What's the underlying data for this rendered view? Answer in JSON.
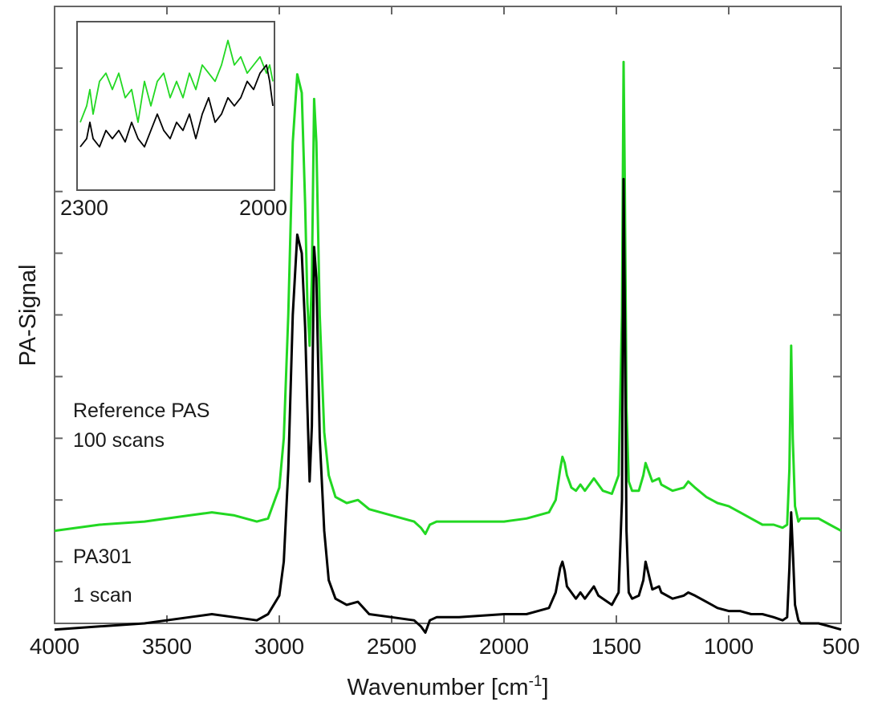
{
  "chart_data": {
    "type": "line",
    "title": "",
    "xlabel": "Wavenumber [cm",
    "xlabel_superscript": "-1",
    "xlabel_suffix": "]",
    "ylabel": "PA-Signal",
    "xlim": [
      4000,
      500
    ],
    "x_reversed": true,
    "x_ticks": [
      4000,
      3500,
      3000,
      2500,
      2000,
      1500,
      1000,
      500
    ],
    "y_tick_labels": false,
    "ylim": [
      0,
      10
    ],
    "grid": false,
    "series": [
      {
        "label_lines": [
          "Reference PAS",
          "100 scans"
        ],
        "color": "#22d822",
        "x": [
          4000,
          3800,
          3600,
          3400,
          3300,
          3200,
          3100,
          3050,
          3000,
          2980,
          2960,
          2940,
          2920,
          2900,
          2885,
          2875,
          2865,
          2855,
          2845,
          2835,
          2820,
          2800,
          2780,
          2750,
          2700,
          2650,
          2600,
          2500,
          2400,
          2370,
          2350,
          2330,
          2300,
          2200,
          2000,
          1900,
          1800,
          1770,
          1750,
          1740,
          1730,
          1720,
          1700,
          1680,
          1660,
          1640,
          1600,
          1580,
          1560,
          1520,
          1490,
          1475,
          1468,
          1462,
          1455,
          1445,
          1430,
          1400,
          1380,
          1370,
          1360,
          1340,
          1310,
          1300,
          1250,
          1200,
          1180,
          1150,
          1100,
          1050,
          1000,
          950,
          900,
          850,
          800,
          760,
          740,
          730,
          722,
          715,
          705,
          690,
          680,
          650,
          600,
          550,
          500
        ],
        "y": [
          1.5,
          1.6,
          1.65,
          1.75,
          1.8,
          1.75,
          1.65,
          1.7,
          2.2,
          3.0,
          5.0,
          7.8,
          8.9,
          8.6,
          6.8,
          5.2,
          4.5,
          5.6,
          8.5,
          7.8,
          5.0,
          3.1,
          2.4,
          2.05,
          1.95,
          2.0,
          1.85,
          1.75,
          1.65,
          1.55,
          1.45,
          1.6,
          1.65,
          1.65,
          1.65,
          1.7,
          1.8,
          2.0,
          2.5,
          2.7,
          2.6,
          2.4,
          2.2,
          2.15,
          2.25,
          2.15,
          2.35,
          2.25,
          2.15,
          2.1,
          2.4,
          5.0,
          9.1,
          7.0,
          3.5,
          2.3,
          2.15,
          2.15,
          2.4,
          2.6,
          2.5,
          2.3,
          2.35,
          2.25,
          2.15,
          2.2,
          2.3,
          2.2,
          2.05,
          1.95,
          1.9,
          1.8,
          1.7,
          1.6,
          1.6,
          1.55,
          1.6,
          2.5,
          4.5,
          3.0,
          1.9,
          1.65,
          1.7,
          1.7,
          1.7,
          1.6,
          1.5
        ]
      },
      {
        "label_lines": [
          "PA301",
          "1 scan"
        ],
        "color": "#000000",
        "x": [
          4000,
          3800,
          3600,
          3400,
          3300,
          3200,
          3100,
          3050,
          3000,
          2980,
          2960,
          2940,
          2920,
          2900,
          2885,
          2875,
          2865,
          2855,
          2845,
          2835,
          2820,
          2800,
          2780,
          2750,
          2700,
          2650,
          2600,
          2500,
          2400,
          2370,
          2350,
          2330,
          2300,
          2200,
          2000,
          1900,
          1800,
          1770,
          1750,
          1740,
          1730,
          1720,
          1700,
          1680,
          1660,
          1640,
          1600,
          1580,
          1560,
          1520,
          1490,
          1475,
          1468,
          1462,
          1455,
          1445,
          1430,
          1400,
          1380,
          1370,
          1360,
          1340,
          1310,
          1300,
          1250,
          1200,
          1180,
          1150,
          1100,
          1050,
          1000,
          950,
          900,
          850,
          800,
          760,
          740,
          730,
          722,
          715,
          705,
          690,
          680,
          650,
          600,
          550,
          500
        ],
        "y": [
          -0.1,
          -0.05,
          0.0,
          0.1,
          0.15,
          0.1,
          0.05,
          0.15,
          0.45,
          1.0,
          2.5,
          5.0,
          6.3,
          6.0,
          4.8,
          3.5,
          2.3,
          3.2,
          6.1,
          5.6,
          3.0,
          1.5,
          0.7,
          0.4,
          0.3,
          0.35,
          0.15,
          0.1,
          0.05,
          -0.05,
          -0.15,
          0.05,
          0.1,
          0.1,
          0.15,
          0.15,
          0.25,
          0.5,
          0.9,
          1.0,
          0.85,
          0.6,
          0.5,
          0.4,
          0.5,
          0.4,
          0.6,
          0.45,
          0.4,
          0.3,
          0.5,
          2.0,
          7.2,
          5.0,
          1.5,
          0.5,
          0.4,
          0.45,
          0.7,
          1.0,
          0.85,
          0.55,
          0.6,
          0.5,
          0.4,
          0.45,
          0.5,
          0.45,
          0.35,
          0.25,
          0.2,
          0.2,
          0.15,
          0.15,
          0.1,
          0.05,
          0.1,
          0.9,
          1.8,
          1.2,
          0.3,
          0.05,
          0.0,
          0.0,
          0.0,
          -0.05,
          -0.1
        ]
      }
    ],
    "inset": {
      "xlim": [
        2300,
        2000
      ],
      "x_tick_labels": [
        "2300",
        "2000"
      ],
      "series": [
        {
          "color": "#22d822",
          "x": [
            2300,
            2290,
            2285,
            2280,
            2270,
            2260,
            2250,
            2240,
            2230,
            2220,
            2210,
            2200,
            2190,
            2180,
            2170,
            2160,
            2150,
            2140,
            2130,
            2120,
            2110,
            2100,
            2090,
            2080,
            2070,
            2060,
            2050,
            2040,
            2030,
            2020,
            2010,
            2005,
            2000
          ],
          "y": [
            0.4,
            0.5,
            0.6,
            0.45,
            0.65,
            0.7,
            0.6,
            0.7,
            0.55,
            0.6,
            0.4,
            0.65,
            0.5,
            0.65,
            0.7,
            0.55,
            0.65,
            0.55,
            0.7,
            0.6,
            0.75,
            0.7,
            0.65,
            0.75,
            0.9,
            0.75,
            0.8,
            0.7,
            0.75,
            0.8,
            0.7,
            0.75,
            0.65
          ]
        },
        {
          "color": "#000000",
          "x": [
            2300,
            2290,
            2285,
            2280,
            2270,
            2260,
            2250,
            2240,
            2230,
            2220,
            2210,
            2200,
            2190,
            2180,
            2170,
            2160,
            2150,
            2140,
            2130,
            2120,
            2110,
            2100,
            2090,
            2080,
            2070,
            2060,
            2050,
            2040,
            2030,
            2020,
            2010,
            2005,
            2000
          ],
          "y": [
            0.25,
            0.3,
            0.4,
            0.3,
            0.25,
            0.35,
            0.3,
            0.35,
            0.28,
            0.4,
            0.3,
            0.25,
            0.35,
            0.45,
            0.35,
            0.3,
            0.4,
            0.35,
            0.45,
            0.3,
            0.45,
            0.55,
            0.4,
            0.45,
            0.55,
            0.5,
            0.55,
            0.65,
            0.6,
            0.7,
            0.75,
            0.65,
            0.5
          ]
        }
      ]
    }
  }
}
